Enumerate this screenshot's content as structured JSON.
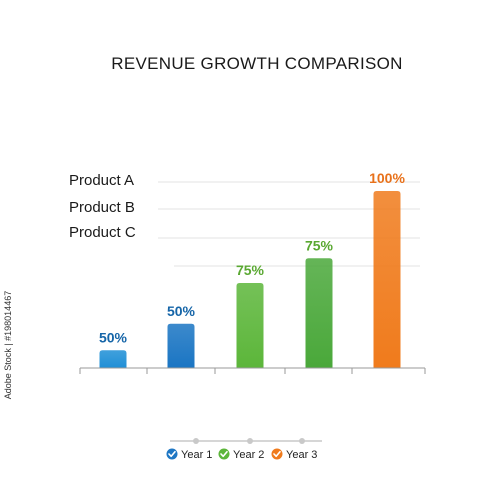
{
  "chart_data": {
    "type": "bar",
    "title": "REVENUE GROWTH COMPARISON",
    "products": [
      "Product A",
      "Product B",
      "Product C"
    ],
    "bars": [
      {
        "value": 10,
        "label": "50%",
        "color": "#1f8fd6"
      },
      {
        "value": 25,
        "label": "50%",
        "color": "#1a75c3"
      },
      {
        "value": 48,
        "label": "75%",
        "color": "#5cb63a"
      },
      {
        "value": 62,
        "label": "75%",
        "color": "#4aa83a"
      },
      {
        "value": 100,
        "label": "100%",
        "color": "#f07b1c"
      }
    ],
    "label_colors": [
      "#1565a8",
      "#1565a8",
      "#5aa832",
      "#5aa832",
      "#e8711a"
    ],
    "legend": [
      {
        "label": "Year 1",
        "color": "#1f77c4"
      },
      {
        "label": "Year 2",
        "color": "#5cb63a"
      },
      {
        "label": "Year 3",
        "color": "#f07b1c"
      }
    ],
    "ylim": [
      0,
      100
    ],
    "grid": true
  },
  "stock_id": "Adobe Stock | #198014467"
}
